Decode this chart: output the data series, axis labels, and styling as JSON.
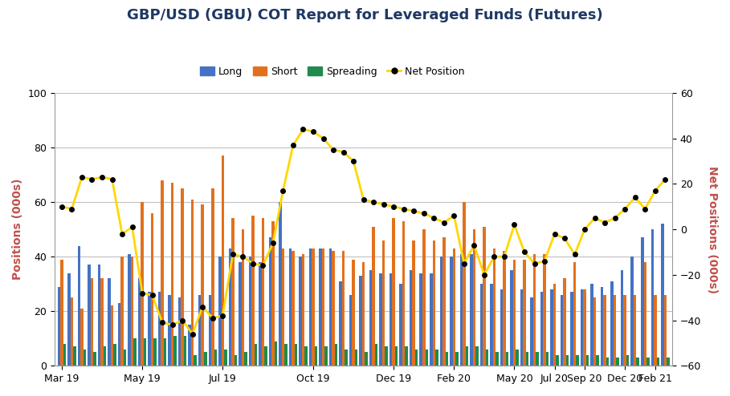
{
  "title": "GBP/USD (GBU) COT Report for Leveraged Funds (Futures)",
  "ylabel_left": "Positions (000s)",
  "ylabel_right": "Net Positions (000s)",
  "ylim_left": [
    0,
    100
  ],
  "ylim_right": [
    -60,
    60
  ],
  "yticks_left": [
    0,
    20,
    40,
    60,
    80,
    100
  ],
  "yticks_right": [
    -60,
    -40,
    -20,
    0,
    20,
    40,
    60
  ],
  "xtick_labels": [
    "Mar 19",
    "May 19",
    "Jul 19",
    "Oct 19",
    "Dec 19",
    "Feb 20",
    "May 20",
    "Jul 20",
    "Sep 20",
    "Dec 20",
    "Feb 21"
  ],
  "xtick_positions": [
    0,
    8,
    16,
    25,
    33,
    39,
    45,
    49,
    52,
    56,
    59
  ],
  "colors": {
    "long": "#4472C4",
    "short": "#E2711D",
    "spreading": "#1F8B4C",
    "net": "#FFD700",
    "net_marker": "#000000",
    "title": "#1F3864",
    "ylabel_left": "#C0504D",
    "ylabel_right": "#C0504D",
    "grid": "#C0C0C0",
    "background": "#FFFFFF",
    "spine": "#999999"
  },
  "long": [
    29,
    34,
    44,
    37,
    37,
    32,
    23,
    41,
    32,
    27,
    27,
    26,
    25,
    15,
    26,
    26,
    40,
    43,
    38,
    40,
    38,
    47,
    60,
    43,
    40,
    43,
    43,
    43,
    31,
    26,
    33,
    35,
    34,
    34,
    30,
    35,
    34,
    34,
    40,
    40,
    41,
    41,
    30,
    30,
    28,
    35,
    28,
    25,
    27,
    28,
    26,
    27,
    28,
    30,
    29,
    31,
    35,
    40,
    47,
    50,
    52
  ],
  "short": [
    39,
    25,
    21,
    32,
    32,
    22,
    40,
    40,
    60,
    56,
    68,
    67,
    65,
    61,
    59,
    65,
    77,
    54,
    50,
    55,
    54,
    53,
    43,
    42,
    41,
    43,
    43,
    42,
    42,
    39,
    38,
    51,
    46,
    54,
    53,
    46,
    50,
    46,
    47,
    43,
    60,
    50,
    51,
    43,
    42,
    39,
    39,
    41,
    41,
    30,
    32,
    38,
    28,
    25,
    26,
    26,
    26,
    26,
    38,
    26,
    26
  ],
  "spreading": [
    8,
    7,
    6,
    5,
    7,
    8,
    6,
    10,
    10,
    10,
    10,
    11,
    11,
    4,
    5,
    6,
    6,
    4,
    5,
    8,
    7,
    9,
    8,
    8,
    7,
    7,
    7,
    8,
    6,
    6,
    5,
    8,
    7,
    7,
    7,
    6,
    6,
    6,
    5,
    5,
    7,
    7,
    6,
    5,
    5,
    6,
    5,
    5,
    5,
    4,
    4,
    4,
    4,
    4,
    3,
    3,
    4,
    3,
    3,
    3,
    3
  ],
  "net": [
    10,
    9,
    23,
    22,
    23,
    22,
    -2,
    1,
    -28,
    -29,
    -41,
    -42,
    -40,
    -46,
    -34,
    -39,
    -38,
    -11,
    -12,
    -15,
    -16,
    -6,
    17,
    37,
    44,
    43,
    40,
    35,
    34,
    30,
    13,
    12,
    11,
    10,
    9,
    8,
    7,
    5,
    3,
    6,
    -15,
    -7,
    -20,
    -12,
    -12,
    2,
    -10,
    -15,
    -14,
    -2,
    -4,
    -11,
    0,
    5,
    3,
    5,
    9,
    14,
    9,
    17,
    22
  ],
  "n_bars": 61
}
